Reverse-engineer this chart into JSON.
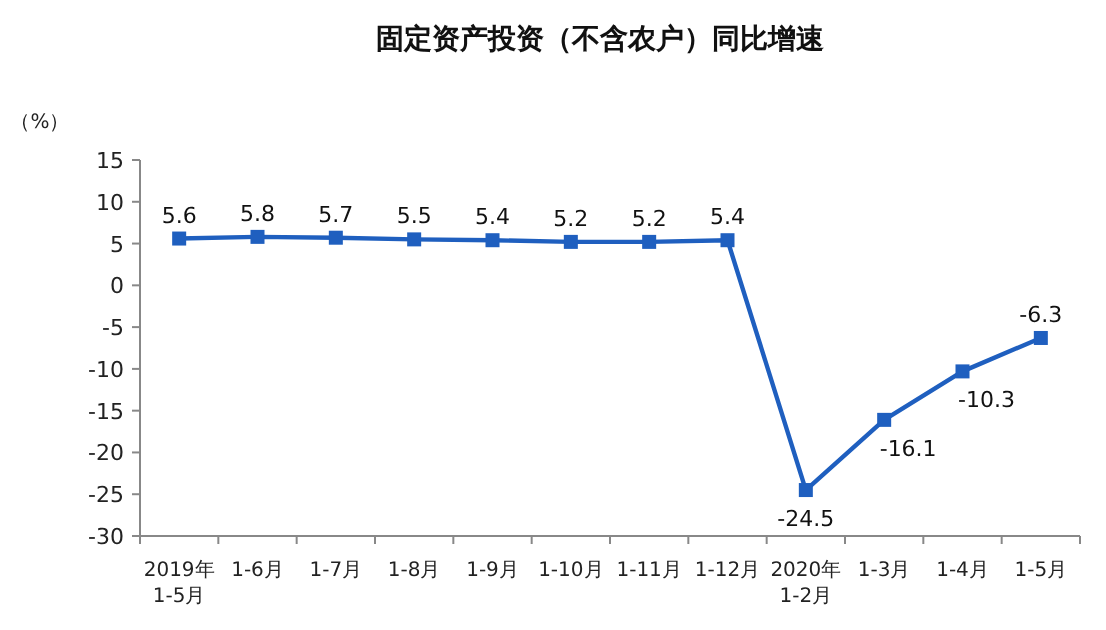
{
  "chart_data": {
    "type": "line",
    "title": "固定资产投资（不含农户）同比增速",
    "ylabel": "（%）",
    "categories": [
      "2019年\n1-5月",
      "1-6月",
      "1-7月",
      "1-8月",
      "1-9月",
      "1-10月",
      "1-11月",
      "1-12月",
      "2020年\n1-2月",
      "1-3月",
      "1-4月",
      "1-5月"
    ],
    "series": [
      {
        "color": "#1f5fbf",
        "values": [
          5.6,
          5.8,
          5.7,
          5.5,
          5.4,
          5.2,
          5.2,
          5.4,
          -24.5,
          -16.1,
          -10.3,
          -6.3
        ]
      }
    ],
    "ylim": [
      -30,
      15
    ],
    "yticks": [
      -30,
      -25,
      -20,
      -15,
      -10,
      -5,
      0,
      5,
      10,
      15
    ],
    "marker": "square",
    "data_labels": true
  }
}
